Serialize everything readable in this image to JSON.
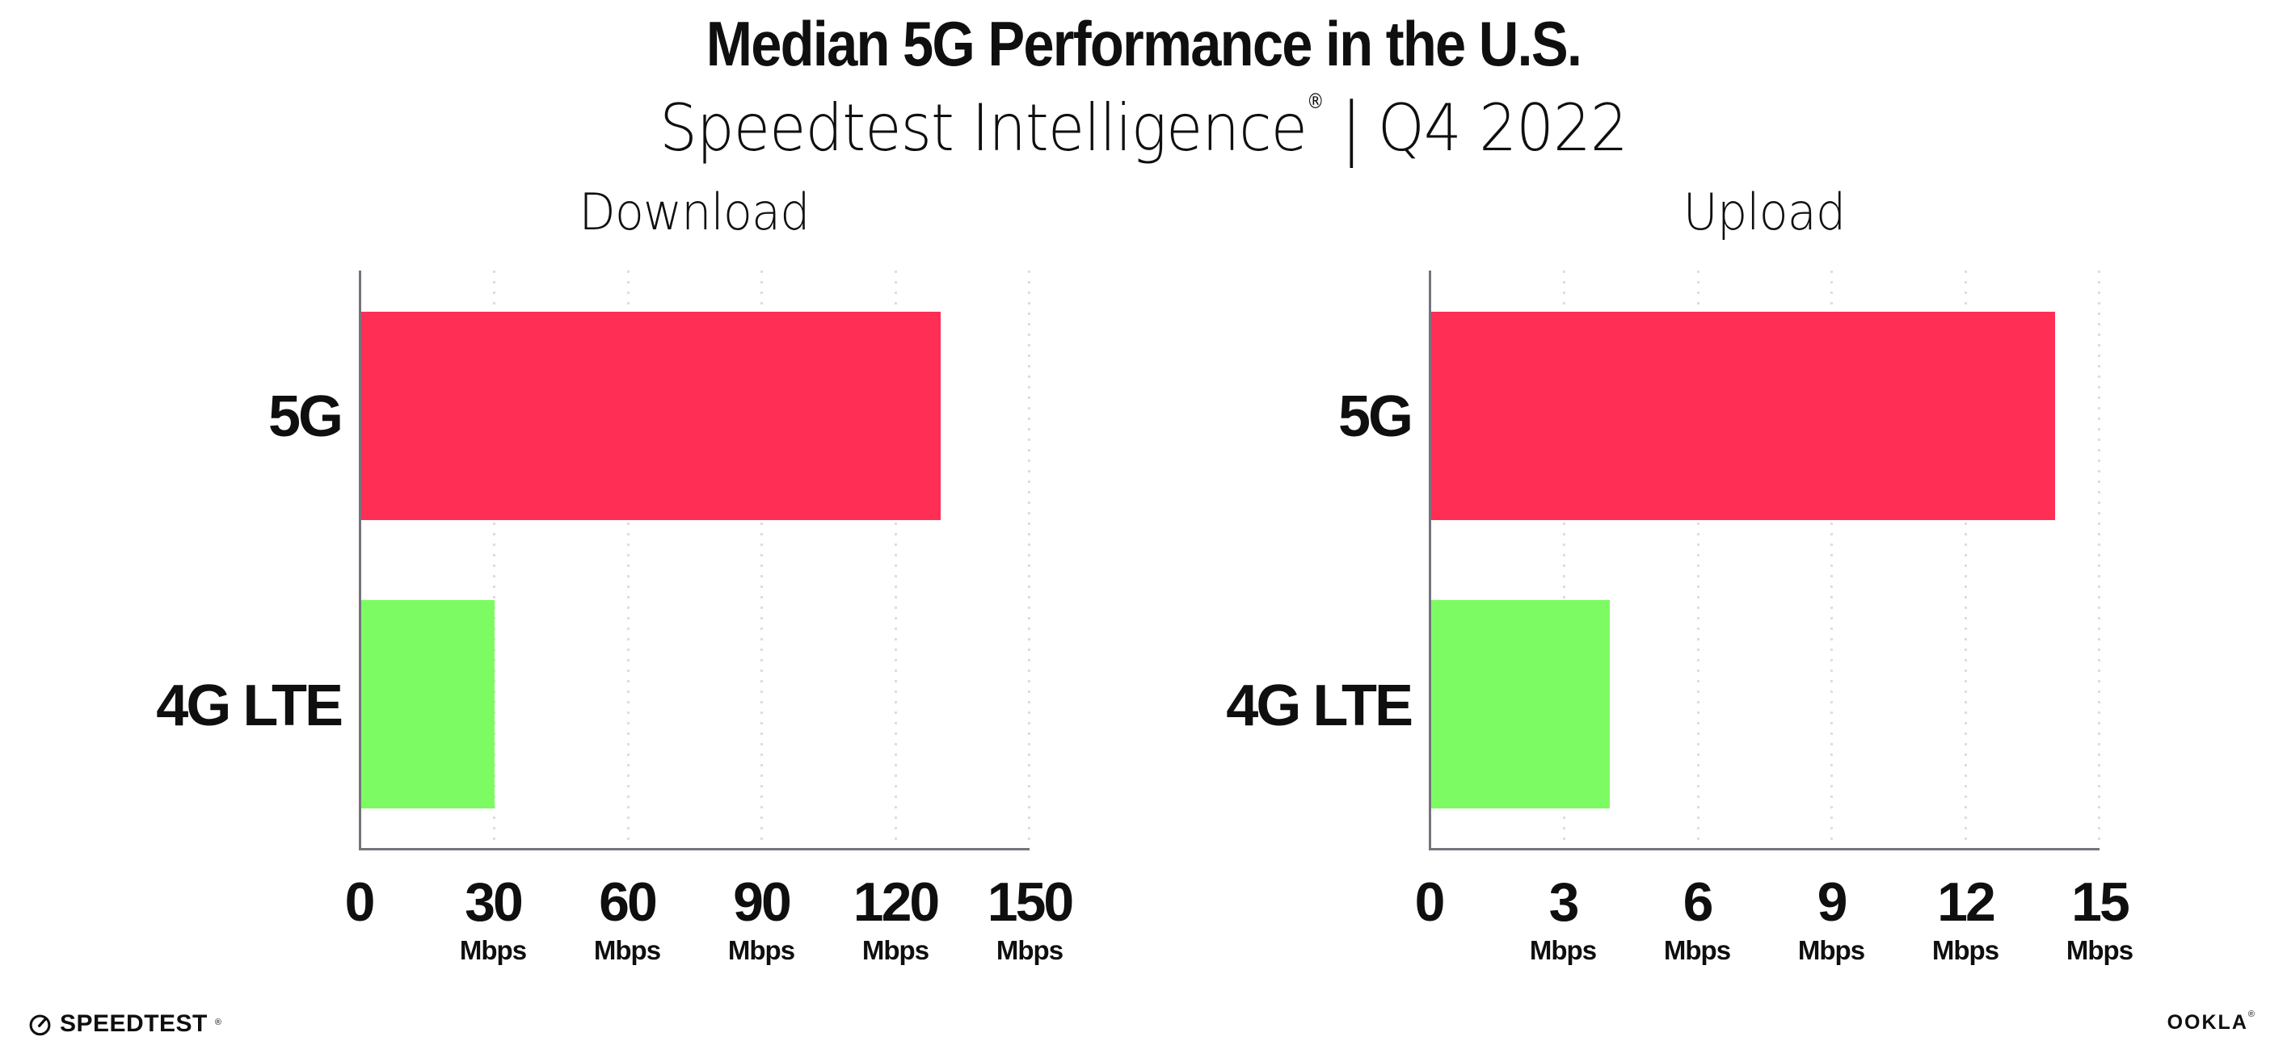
{
  "header": {
    "title": "Median 5G Performance in the U.S.",
    "subtitle": {
      "brand": "Speedtest Intelligence",
      "registered_mark": "®",
      "separator": "|",
      "period": "Q4 2022"
    }
  },
  "chart_data": [
    {
      "type": "bar",
      "orientation": "horizontal",
      "title": "Download",
      "categories": [
        "5G",
        "4G LTE"
      ],
      "values": [
        130,
        30
      ],
      "unit": "Mbps",
      "xlim": [
        0,
        150
      ],
      "xticks": [
        0,
        30,
        60,
        90,
        120,
        150
      ],
      "bar_colors": [
        "#ff2e55",
        "#7dfb63"
      ],
      "grid": "dotted vertical gridlines at each tick",
      "legend": "none"
    },
    {
      "type": "bar",
      "orientation": "horizontal",
      "title": "Upload",
      "categories": [
        "5G",
        "4G LTE"
      ],
      "values": [
        14,
        4
      ],
      "unit": "Mbps",
      "xlim": [
        0,
        15
      ],
      "xticks": [
        0,
        3,
        6,
        9,
        12,
        15
      ],
      "bar_colors": [
        "#ff2e55",
        "#7dfb63"
      ],
      "grid": "dotted vertical gridlines at each tick",
      "legend": "none"
    }
  ],
  "footer": {
    "speedtest": {
      "label": "SPEEDTEST",
      "mark": "®",
      "icon": "gauge-icon"
    },
    "ookla": {
      "label": "OOKLA",
      "mark": "®"
    }
  },
  "colors": {
    "bar_5g": "#ff2e55",
    "bar_4g_lte": "#7dfb63",
    "axis": "#74747c",
    "gridline": "#dcdce6",
    "text": "#0f0f10",
    "background": "#ffffff"
  }
}
